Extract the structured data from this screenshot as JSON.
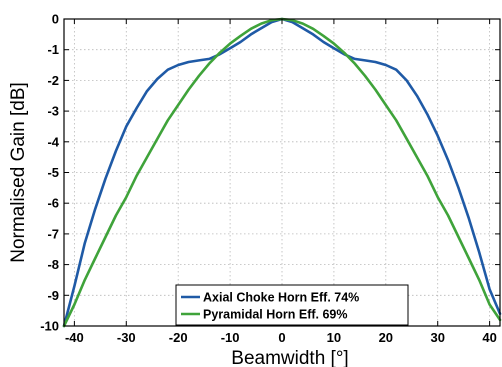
{
  "chart_data": {
    "type": "line",
    "title": "",
    "xlabel": "Beamwidth [°]",
    "ylabel": "Normalised Gain [dB]",
    "xlim": [
      -42,
      42
    ],
    "ylim": [
      -10,
      0
    ],
    "xticks": [
      -40,
      -30,
      -20,
      -10,
      0,
      10,
      20,
      30,
      40
    ],
    "yticks": [
      0,
      -1,
      -2,
      -3,
      -4,
      -5,
      -6,
      -7,
      -8,
      -9,
      -10
    ],
    "grid": true,
    "legend_position": "bottom-center",
    "series": [
      {
        "name": "Axial Choke Horn Eff. 74%",
        "color": "#1f5aa6",
        "x": [
          -42,
          -40,
          -38,
          -36,
          -34,
          -32,
          -30,
          -28,
          -26,
          -24,
          -22,
          -20,
          -18,
          -16,
          -14,
          -12,
          -10,
          -8,
          -6,
          -4,
          -2,
          0,
          2,
          4,
          6,
          8,
          10,
          12,
          14,
          16,
          18,
          20,
          22,
          24,
          26,
          28,
          30,
          32,
          34,
          36,
          38,
          40,
          42
        ],
        "y": [
          -10.0,
          -8.7,
          -7.3,
          -6.2,
          -5.2,
          -4.3,
          -3.5,
          -2.9,
          -2.35,
          -1.95,
          -1.65,
          -1.5,
          -1.4,
          -1.35,
          -1.3,
          -1.15,
          -0.95,
          -0.75,
          -0.5,
          -0.3,
          -0.1,
          0.0,
          -0.1,
          -0.3,
          -0.5,
          -0.75,
          -0.95,
          -1.15,
          -1.3,
          -1.35,
          -1.4,
          -1.5,
          -1.65,
          -2.0,
          -2.5,
          -3.1,
          -3.8,
          -4.6,
          -5.5,
          -6.5,
          -7.6,
          -8.8,
          -9.6
        ]
      },
      {
        "name": "Pyramidal Horn Eff. 69%",
        "color": "#3fa33a",
        "x": [
          -42,
          -40,
          -38,
          -36,
          -34,
          -32,
          -30,
          -28,
          -26,
          -24,
          -22,
          -20,
          -18,
          -16,
          -14,
          -12,
          -10,
          -8,
          -6,
          -4,
          -2,
          0,
          2,
          4,
          6,
          8,
          10,
          12,
          14,
          16,
          18,
          20,
          22,
          24,
          26,
          28,
          30,
          32,
          34,
          36,
          38,
          40,
          42
        ],
        "y": [
          -10.0,
          -9.3,
          -8.5,
          -7.8,
          -7.1,
          -6.4,
          -5.8,
          -5.1,
          -4.5,
          -3.9,
          -3.3,
          -2.8,
          -2.3,
          -1.85,
          -1.45,
          -1.1,
          -0.8,
          -0.55,
          -0.32,
          -0.15,
          -0.04,
          0.0,
          -0.04,
          -0.15,
          -0.32,
          -0.55,
          -0.8,
          -1.1,
          -1.45,
          -1.85,
          -2.3,
          -2.8,
          -3.3,
          -3.9,
          -4.5,
          -5.1,
          -5.8,
          -6.4,
          -7.1,
          -7.8,
          -8.5,
          -9.3,
          -9.8
        ]
      }
    ]
  }
}
